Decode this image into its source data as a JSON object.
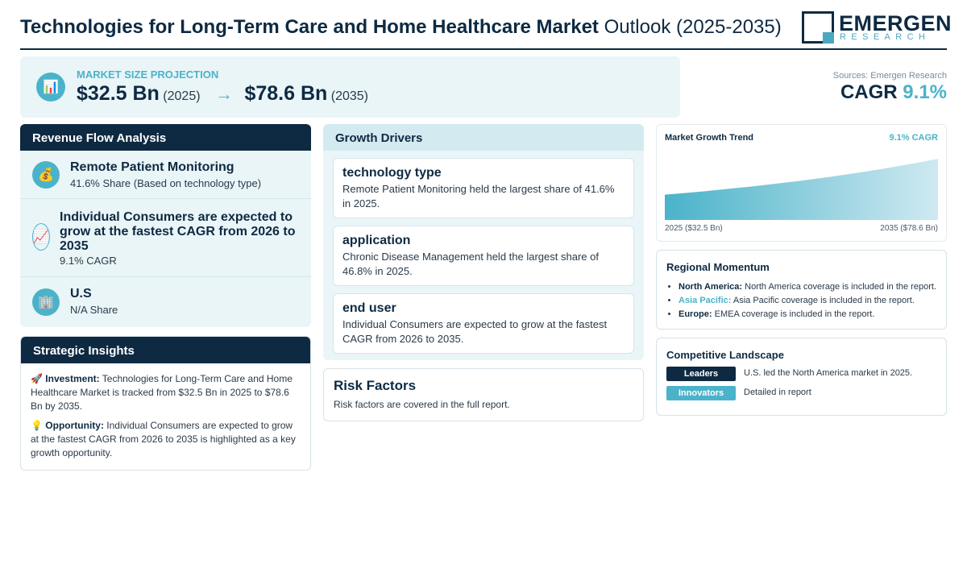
{
  "header": {
    "title_bold": "Technologies for Long-Term Care and Home Healthcare Market",
    "title_light": "Outlook (2025-2035)",
    "logo_name": "EMERGEN",
    "logo_sub": "RESEARCH"
  },
  "projection": {
    "icon": "bar-chart-icon",
    "label": "MARKET SIZE PROJECTION",
    "start_value": "$32.5 Bn",
    "start_year": "(2025)",
    "arrow": "→",
    "end_value": "$78.6 Bn",
    "end_year": "(2035)"
  },
  "cagr": {
    "sources": "Sources: Emergen Research",
    "label": "CAGR",
    "value": "9.1%"
  },
  "revenue": {
    "heading": "Revenue Flow Analysis",
    "items": [
      {
        "icon": "money-bag-icon",
        "title": "Remote Patient Monitoring",
        "sub": "41.6% Share (Based on technology type)"
      },
      {
        "icon": "trend-up-icon",
        "title": "Individual Consumers are expected to grow at the fastest CAGR from 2026 to 2035",
        "sub": "9.1% CAGR"
      },
      {
        "icon": "building-icon",
        "title": "U.S",
        "sub": "N/A Share"
      }
    ]
  },
  "insights": {
    "heading": "Strategic Insights",
    "investment_label": "Investment:",
    "investment_text": "Technologies for Long-Term Care and Home Healthcare Market is tracked from $32.5 Bn in 2025 to $78.6 Bn by 2035.",
    "opportunity_label": "Opportunity:",
    "opportunity_text": "Individual Consumers are expected to grow at the fastest CAGR from 2026 to 2035 is highlighted as a key growth opportunity."
  },
  "drivers": {
    "heading": "Growth Drivers",
    "cards": [
      {
        "title": "technology type",
        "text": "Remote Patient Monitoring held the largest share of 41.6% in 2025."
      },
      {
        "title": "application",
        "text": "Chronic Disease Management held the largest share of 46.8% in 2025."
      },
      {
        "title": "end user",
        "text": "Individual Consumers are expected to grow at the fastest CAGR from 2026 to 2035."
      }
    ]
  },
  "risk": {
    "title": "Risk Factors",
    "text": "Risk factors are covered in the full report."
  },
  "trend": {
    "title": "Market Growth Trend",
    "cagr": "9.1% CAGR",
    "left_label": "2025 ($32.5 Bn)",
    "right_label": "2035 ($78.6 Bn)",
    "colors": {
      "fill_top": "#cfe9f1",
      "fill_bottom": "#4ab3c9"
    }
  },
  "chart_data": {
    "type": "area",
    "x": [
      2025,
      2035
    ],
    "values": [
      32.5,
      78.6
    ],
    "title": "Market Growth Trend",
    "xlabel": "",
    "ylabel": ""
  },
  "regional": {
    "heading": "Regional Momentum",
    "items": [
      {
        "region": "North America:",
        "text": "North America coverage is included in the report."
      },
      {
        "region": "Asia Pacific:",
        "text": "Asia Pacific coverage is included in the report."
      },
      {
        "region": "Europe:",
        "text": "EMEA coverage is included in the report."
      }
    ]
  },
  "competitive": {
    "heading": "Competitive Landscape",
    "rows": [
      {
        "badge": "Leaders",
        "text": "U.S. led the North America market in 2025.",
        "color": "#0e2a42"
      },
      {
        "badge": "Innovators",
        "text": "Detailed in report",
        "color": "#4ab3c9"
      }
    ]
  },
  "colors": {
    "navy": "#0e2a42",
    "accent": "#4ab3c9",
    "panel_bg": "#eaf5f8"
  }
}
